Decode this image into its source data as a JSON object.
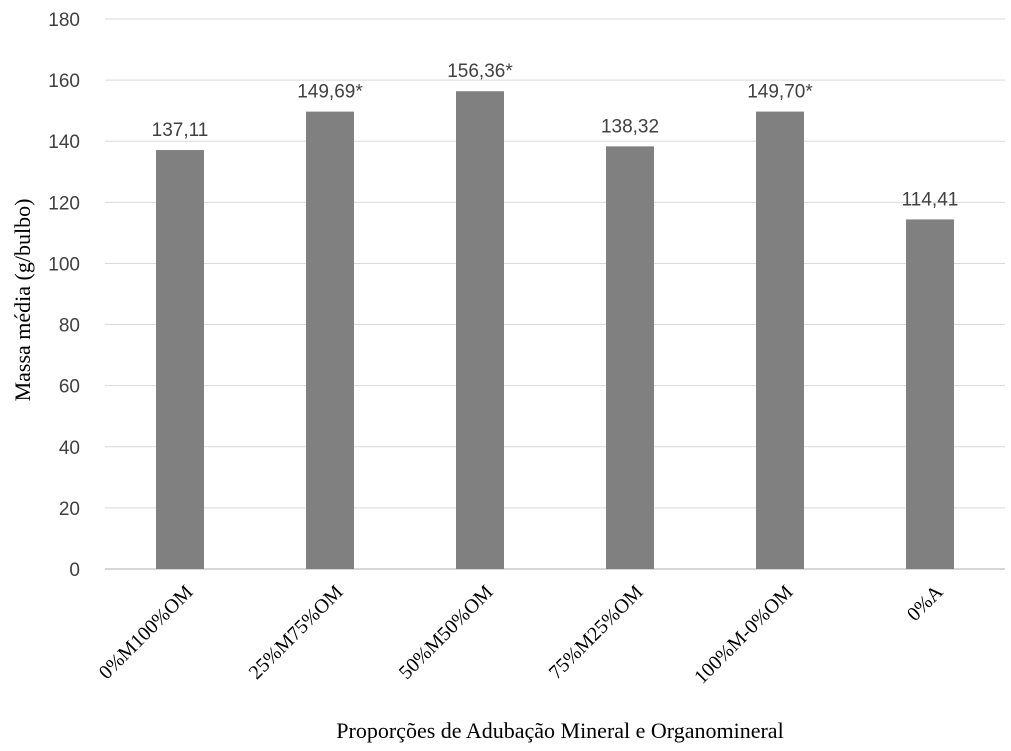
{
  "chart_data": {
    "type": "bar",
    "title": "",
    "xlabel": "Proporções de Adubação Mineral e Organomineral",
    "ylabel": "Massa média (g/bulbo)",
    "ylim": [
      0,
      180
    ],
    "yticks": [
      0,
      20,
      40,
      60,
      80,
      100,
      120,
      140,
      160,
      180
    ],
    "grid": true,
    "categories": [
      "0%M100%OM",
      "25%M75%OM",
      "50%M50%OM",
      "75%M25%OM",
      "100%M-0%OM",
      "0%A"
    ],
    "values": [
      137.11,
      149.69,
      156.36,
      138.32,
      149.7,
      114.41
    ],
    "data_labels": [
      "137,11",
      "149,69*",
      "156,36*",
      "138,32",
      "149,70*",
      "114,41"
    ],
    "bar_color": "#808080",
    "grid_color": "#d9d9d9"
  }
}
